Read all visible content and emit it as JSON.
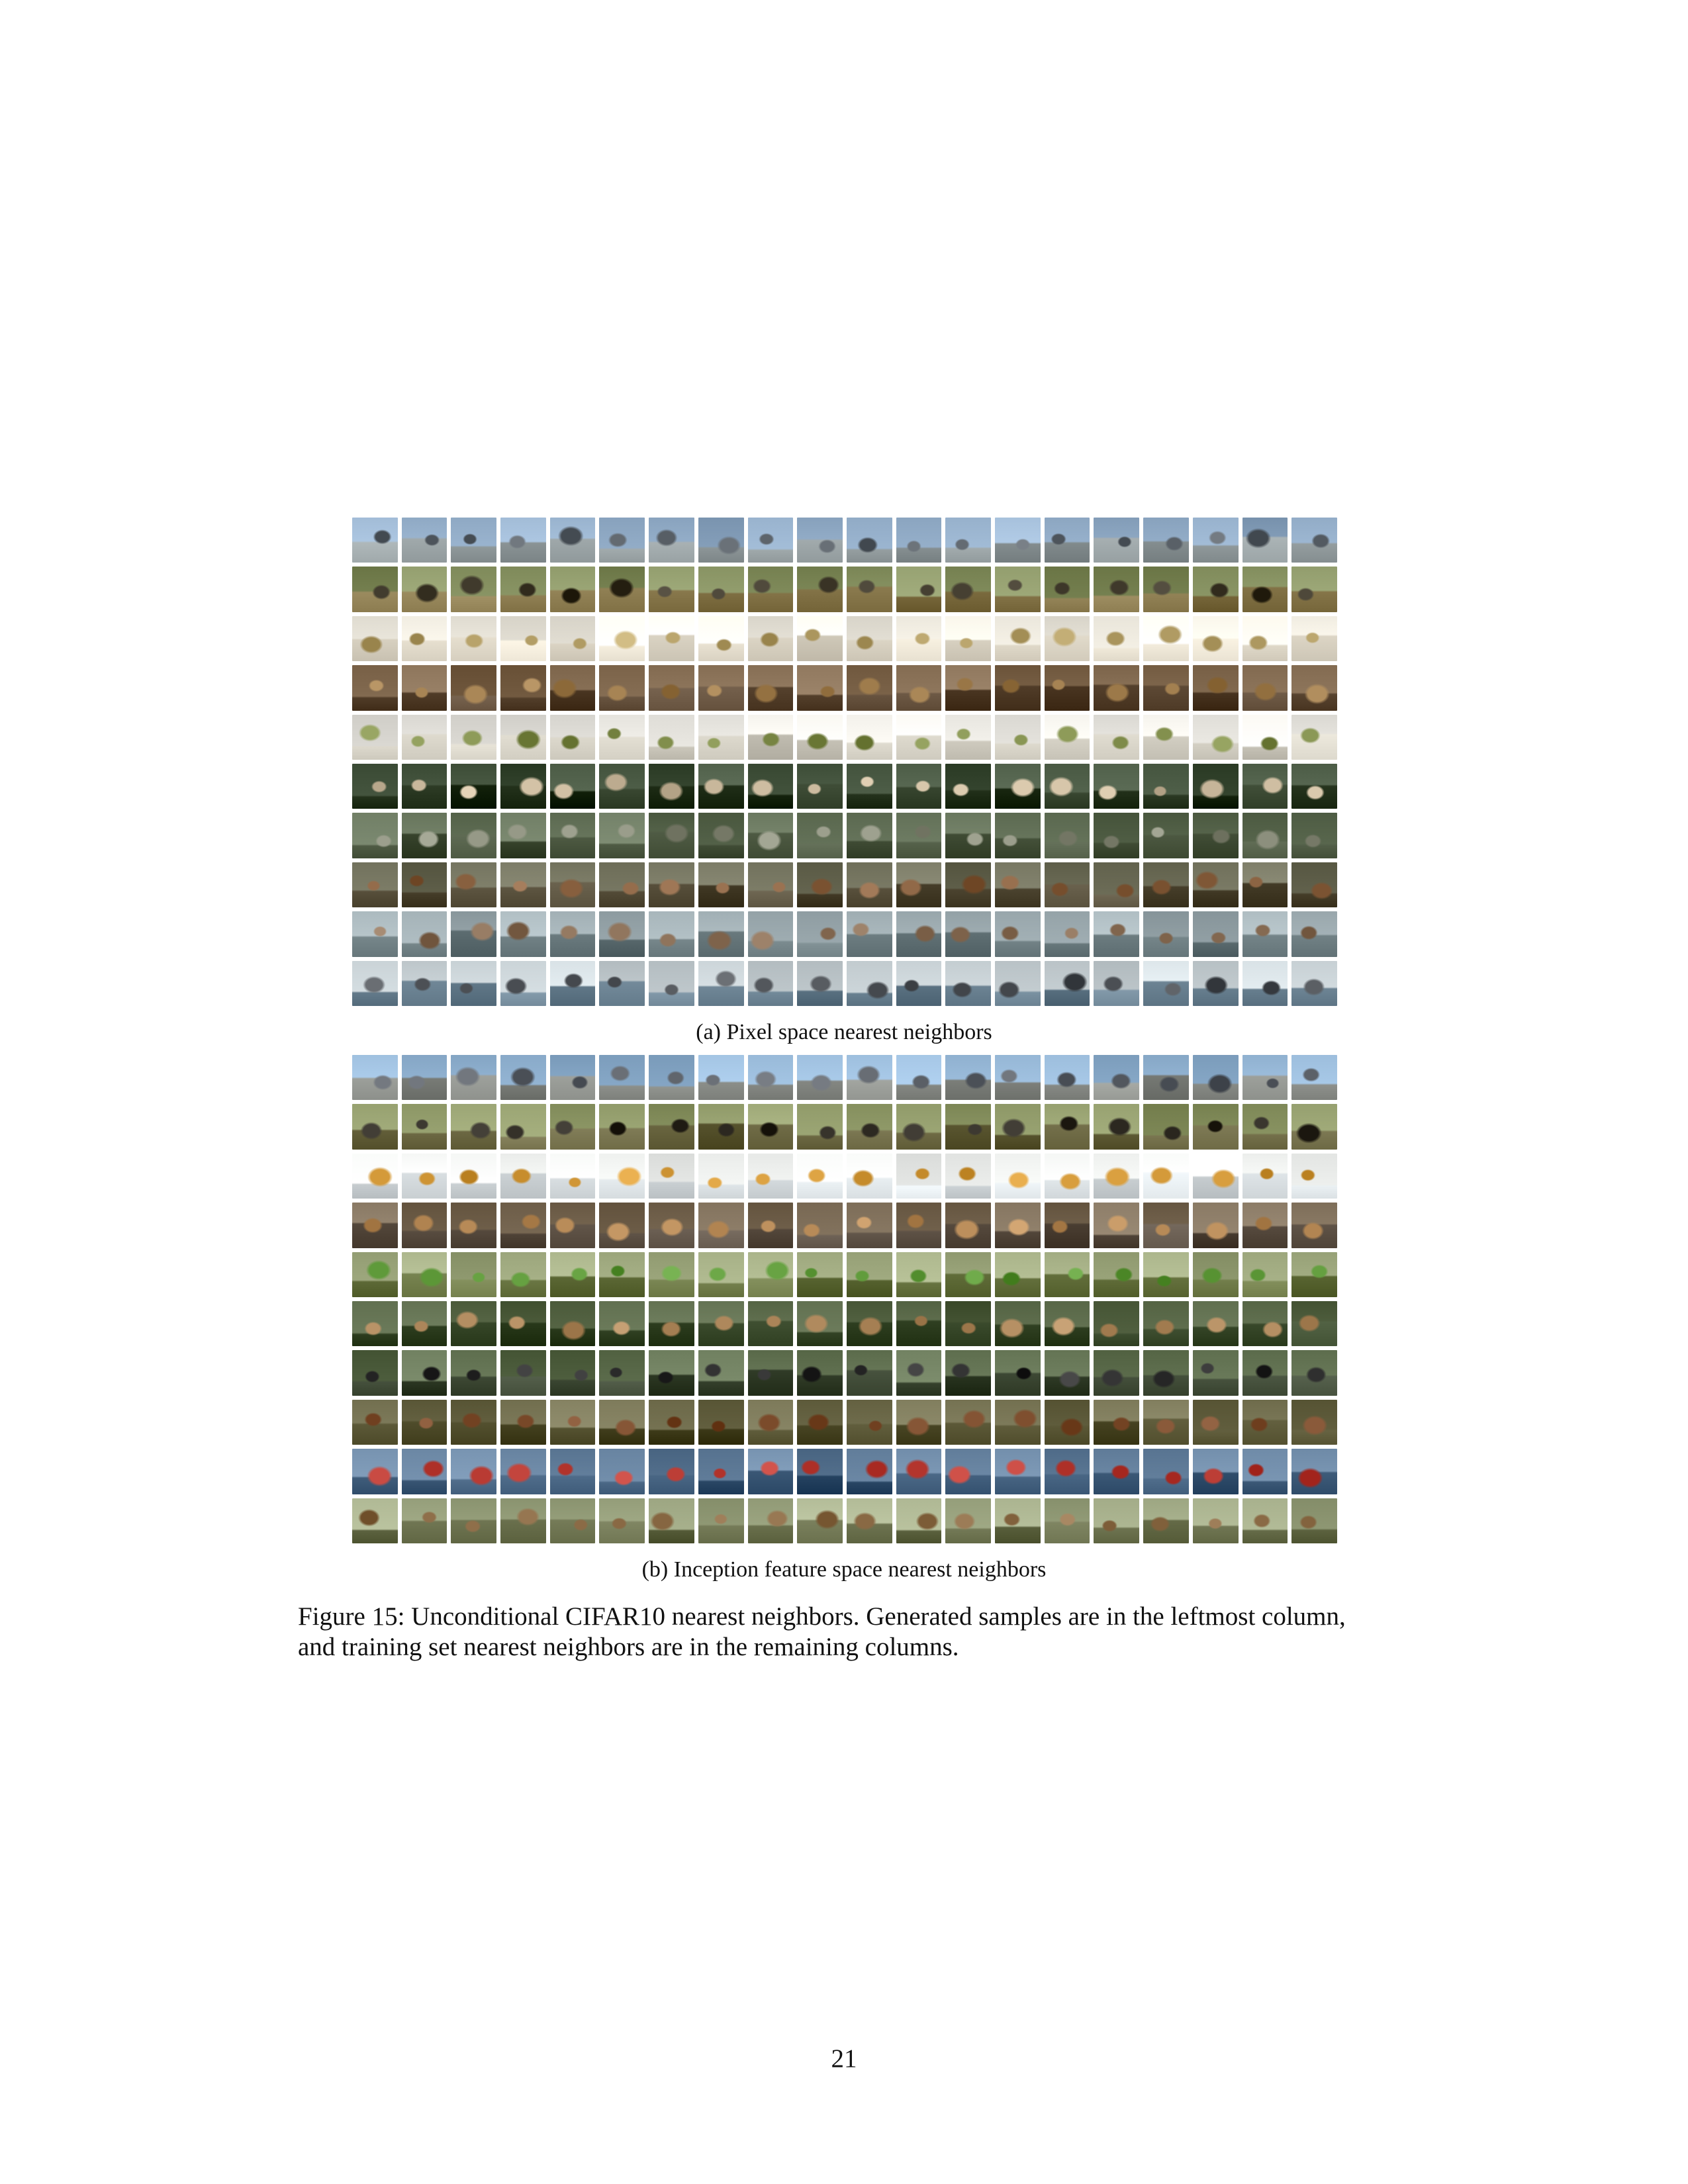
{
  "figure": {
    "panels": [
      {
        "id": "a",
        "caption": "(a) Pixel space nearest neighbors",
        "rows": 10,
        "cols": 20,
        "row_palettes": [
          {
            "sky": "#8fa9c4",
            "ground": "#9aa3a5",
            "subject": "#5d646b"
          },
          {
            "sky": "#7f8a5a",
            "ground": "#8a7a4e",
            "subject": "#3b3527"
          },
          {
            "sky": "#eeeadf",
            "ground": "#e6dfcf",
            "subject": "#b7a26a"
          },
          {
            "sky": "#7a6248",
            "ground": "#5f4b37",
            "subject": "#9e7b4b"
          },
          {
            "sky": "#e7e5df",
            "ground": "#d8d4c8",
            "subject": "#7f8c4a"
          },
          {
            "sky": "#3a4a34",
            "ground": "#27351f",
            "subject": "#c8b79b"
          },
          {
            "sky": "#5d6b52",
            "ground": "#4d5942",
            "subject": "#8a8d7b"
          },
          {
            "sky": "#6a6a55",
            "ground": "#574f3b",
            "subject": "#8b6342"
          },
          {
            "sky": "#9aa8ad",
            "ground": "#6f7f83",
            "subject": "#8a6f57"
          },
          {
            "sky": "#c9d2d6",
            "ground": "#6e8595",
            "subject": "#4f5358"
          }
        ]
      },
      {
        "id": "b",
        "caption": "(b) Inception feature space nearest neighbors",
        "rows": 10,
        "cols": 20,
        "row_palettes": [
          {
            "sky": "#8fb0cf",
            "ground": "#8e918c",
            "subject": "#5a5f66"
          },
          {
            "sky": "#86905f",
            "ground": "#6e6a45",
            "subject": "#2e2a22"
          },
          {
            "sky": "#eef0ee",
            "ground": "#dde3e6",
            "subject": "#d59b3b"
          },
          {
            "sky": "#7a6a55",
            "ground": "#5e5246",
            "subject": "#b78a57"
          },
          {
            "sky": "#9aa47a",
            "ground": "#6e7a47",
            "subject": "#5f9a3a"
          },
          {
            "sky": "#4b5a3a",
            "ground": "#3a4a2c",
            "subject": "#b08a5e"
          },
          {
            "sky": "#5a6a4a",
            "ground": "#3f4a36",
            "subject": "#2a2a2a"
          },
          {
            "sky": "#6d6a4a",
            "ground": "#53502f",
            "subject": "#7a4a2a"
          },
          {
            "sky": "#5f7b98",
            "ground": "#3d5a78",
            "subject": "#b83a32"
          },
          {
            "sky": "#9aa37f",
            "ground": "#6d7350",
            "subject": "#8a6a45"
          }
        ]
      }
    ],
    "caption_lines": [
      "Figure 15: Unconditional CIFAR10 nearest neighbors. Generated samples are in the leftmost column,",
      "and training set nearest neighbors are in the remaining columns."
    ]
  },
  "page_number": "21"
}
